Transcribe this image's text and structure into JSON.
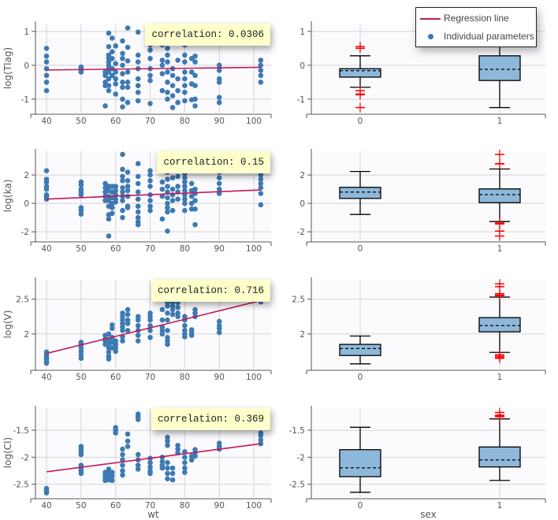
{
  "colors": {
    "points": "#3d7ab3",
    "regression": "#c2185b",
    "box_fill": "#8db8d9",
    "outlier": "#ff0000",
    "plot_bg": "#fbfbfe",
    "grid": "#d4d4d8"
  },
  "legend": {
    "regression_label": "Regression line",
    "points_label": "Individual parameters"
  },
  "chart_data": {
    "type": "scatter+box",
    "xlabel_scatter": "wt",
    "xlabel_box": "sex",
    "xlim_scatter": [
      36.8,
      105
    ],
    "x_ticks_scatter": [
      40,
      50,
      60,
      70,
      80,
      90,
      100
    ],
    "box_categories": [
      "0",
      "1"
    ],
    "grid": true,
    "legend_placement": "top-right",
    "correlation_label": "correlation:",
    "panels": [
      {
        "ylabel": "log(Tlag)",
        "ylim": [
          -1.4,
          1.23
        ],
        "y_ticks": [
          {
            "v": 1,
            "t": "1"
          },
          {
            "v": 0,
            "t": "0"
          },
          {
            "v": -1,
            "t": "-1"
          }
        ],
        "correlation": "0.0306",
        "regression": [
          [
            40,
            -0.14
          ],
          [
            102,
            -0.06
          ]
        ],
        "groups": [
          {
            "wt": 40,
            "y": [
              0.5,
              0.27,
              0.1,
              -0.1,
              -0.3,
              -0.5,
              -0.75
            ]
          },
          {
            "wt": 50,
            "y": [
              -0.05,
              -0.1,
              -0.15,
              -0.2
            ]
          },
          {
            "wt": 57,
            "y": [
              -0.2,
              -0.3,
              -0.5,
              -0.6,
              -1.2
            ]
          },
          {
            "wt": 58,
            "y": [
              0.95,
              0.55,
              0.3,
              0.2,
              0.1,
              0,
              -0.1,
              -0.2,
              -0.4,
              -0.6,
              -0.75
            ]
          },
          {
            "wt": 59,
            "y": [
              0.8,
              0.4,
              0.2,
              -0.1,
              -0.3
            ]
          },
          {
            "wt": 60,
            "y": [
              0.57,
              0.05,
              -0.2,
              -0.4,
              -0.55,
              -0.85
            ]
          },
          {
            "wt": 62,
            "y": [
              0.72,
              0.35,
              0.2,
              0,
              -0.25,
              -0.5,
              -0.65,
              -1.0,
              -1.23
            ]
          },
          {
            "wt": 63.5,
            "y": [
              1.1,
              0.53,
              0.13,
              -0.2,
              -0.5,
              -0.65,
              -1.1
            ]
          },
          {
            "wt": 66.5,
            "y": [
              0.98,
              0.3,
              0.1,
              -0.1,
              -0.4,
              -0.6,
              -0.8,
              -1.05
            ]
          },
          {
            "wt": 70,
            "y": [
              0.98,
              0.6,
              0.45,
              0.2,
              -0.1,
              -0.3,
              -0.45,
              -1.13
            ]
          },
          {
            "wt": 73.5,
            "y": [
              0.6,
              0.15,
              0,
              -0.25,
              -0.75
            ]
          },
          {
            "wt": 75,
            "y": [
              0.5,
              0.3,
              0.1,
              -0.2,
              -0.5,
              -0.8,
              -1.0
            ]
          },
          {
            "wt": 76.5,
            "y": [
              -0.1,
              -0.3,
              -0.6,
              -0.9,
              -1.25
            ]
          },
          {
            "wt": 78,
            "y": [
              0.15,
              -0.4,
              -0.75,
              -1.1
            ]
          },
          {
            "wt": 80,
            "y": [
              0.9,
              0.6,
              0.3,
              0.1,
              -0.2,
              -0.4,
              -0.6,
              -0.8,
              -1.05
            ]
          },
          {
            "wt": 82,
            "y": [
              0.2,
              -0.2,
              -0.55,
              -1.02
            ]
          },
          {
            "wt": 83,
            "y": [
              0.27,
              0.1,
              -0.3,
              -0.6,
              -1.0,
              -1.2
            ]
          },
          {
            "wt": 90,
            "y": [
              0,
              -0.15,
              -0.4,
              -0.5,
              -0.95,
              -1.1
            ]
          },
          {
            "wt": 102,
            "y": [
              0.15,
              0,
              -0.15,
              -0.3,
              -0.5
            ]
          }
        ],
        "boxes": [
          {
            "category": "0",
            "lower_whisker": -0.65,
            "q1": -0.35,
            "median": -0.16,
            "q3": -0.1,
            "upper_whisker": 0.28,
            "outliers": [
              0.55,
              0.5,
              -0.75,
              -0.85,
              -0.87,
              -1.25
            ]
          },
          {
            "category": "1",
            "lower_whisker": -1.25,
            "q1": -0.45,
            "median": -0.12,
            "q3": 0.28,
            "upper_whisker": 1.0,
            "outliers": []
          }
        ]
      },
      {
        "ylabel": "log(ka)",
        "ylim": [
          -2.6,
          3.67
        ],
        "y_ticks": [
          {
            "v": 2,
            "t": "2"
          },
          {
            "v": 0,
            "t": "0"
          },
          {
            "v": -2,
            "t": "-2"
          }
        ],
        "correlation": "0.15",
        "regression": [
          [
            40,
            0.3
          ],
          [
            102,
            0.95
          ]
        ],
        "groups": [
          {
            "wt": 40,
            "y": [
              2.3,
              1.7,
              1.5,
              1.2,
              1.0,
              0.6,
              0.5,
              0.3
            ]
          },
          {
            "wt": 50,
            "y": [
              1.5,
              1.3,
              1.0,
              0.8,
              0.6,
              -0.3,
              -0.5,
              -0.75
            ]
          },
          {
            "wt": 57,
            "y": [
              1.4,
              1.1,
              0.8,
              0.5,
              0.2
            ]
          },
          {
            "wt": 58,
            "y": [
              1.2,
              0.9,
              0.5,
              0.2,
              -0.2,
              -0.8,
              -1.1,
              -2.3
            ]
          },
          {
            "wt": 59,
            "y": [
              1.2,
              0.8,
              0.4,
              0,
              -0.3,
              -0.7
            ]
          },
          {
            "wt": 60,
            "y": [
              1.2,
              0.9,
              0.6,
              0.3,
              0.1
            ]
          },
          {
            "wt": 62,
            "y": [
              3.45,
              2.4,
              1.9,
              1.6,
              1.1,
              0.8,
              0.5,
              0.2,
              -0.5,
              -1.0
            ]
          },
          {
            "wt": 63.5,
            "y": [
              2.2,
              1.6,
              1.2,
              0.9,
              0.5,
              -0.2,
              -0.3
            ]
          },
          {
            "wt": 66.5,
            "y": [
              2.8,
              1.9,
              1.4,
              0.8,
              0.3,
              -0.2,
              -0.6,
              -1.0,
              -1.3,
              -1.5
            ]
          },
          {
            "wt": 70,
            "y": [
              2.3,
              2.0,
              1.6,
              1.2,
              0.6,
              0.2,
              -0.2,
              -0.5
            ]
          },
          {
            "wt": 73.5,
            "y": [
              2.4,
              1.5,
              1.0,
              0.5,
              -1.1
            ]
          },
          {
            "wt": 75,
            "y": [
              2.2,
              1.7,
              1.2,
              0.8,
              0.4,
              0,
              -0.3,
              -0.6,
              -1.95
            ]
          },
          {
            "wt": 76.5,
            "y": [
              1.8,
              1.0,
              0.6,
              0.2,
              -0.5
            ]
          },
          {
            "wt": 78,
            "y": [
              1.9,
              1.2,
              0.8,
              0.3
            ]
          },
          {
            "wt": 80,
            "y": [
              2.1,
              1.8,
              1.5,
              1.2,
              0.9,
              0.6,
              0.3,
              0,
              -0.5
            ]
          },
          {
            "wt": 82,
            "y": [
              1.4,
              0.9,
              0.5,
              0,
              -0.4
            ]
          },
          {
            "wt": 83,
            "y": [
              1.0,
              0.7,
              0.2,
              -0.4,
              -1.5
            ]
          },
          {
            "wt": 90,
            "y": [
              2.2,
              1.8,
              1.4,
              1.0,
              0.7
            ]
          },
          {
            "wt": 102,
            "y": [
              2.0,
              1.7,
              1.4,
              1.1,
              0.7,
              -0.1
            ]
          }
        ],
        "boxes": [
          {
            "category": "0",
            "lower_whisker": -0.78,
            "q1": 0.35,
            "median": 0.8,
            "q3": 1.13,
            "upper_whisker": 2.25,
            "outliers": []
          },
          {
            "category": "1",
            "lower_whisker": -1.28,
            "q1": 0.05,
            "median": 0.62,
            "q3": 1.02,
            "upper_whisker": 2.42,
            "outliers": [
              3.45,
              2.8,
              2.78,
              -1.38,
              -1.45,
              -1.95,
              -2.3
            ]
          }
        ]
      },
      {
        "ylabel": "log(V)",
        "ylim": [
          1.5,
          2.78
        ],
        "y_ticks": [
          {
            "v": 2.5,
            "t": "2.5"
          },
          {
            "v": 2,
            "t": "2"
          }
        ],
        "correlation": "0.716",
        "regression": [
          [
            40,
            1.72
          ],
          [
            102,
            2.48
          ]
        ],
        "groups": [
          {
            "wt": 40,
            "y": [
              1.74,
              1.7,
              1.67,
              1.64,
              1.6,
              1.58
            ]
          },
          {
            "wt": 50,
            "y": [
              1.88,
              1.85,
              1.8,
              1.75,
              1.7,
              1.65
            ]
          },
          {
            "wt": 57,
            "y": [
              1.98,
              1.93,
              1.9,
              1.85
            ]
          },
          {
            "wt": 58,
            "y": [
              2.0,
              1.92,
              1.85,
              1.8,
              1.74,
              1.68,
              1.64
            ]
          },
          {
            "wt": 59,
            "y": [
              2.13,
              2.08,
              1.95,
              1.88,
              1.8
            ]
          },
          {
            "wt": 60,
            "y": [
              1.9,
              1.85,
              1.8,
              1.75
            ]
          },
          {
            "wt": 62,
            "y": [
              2.3,
              2.25,
              2.2,
              2.15,
              2.1,
              2.05,
              1.96,
              1.9
            ]
          },
          {
            "wt": 63.5,
            "y": [
              2.35,
              2.28,
              2.2,
              2.15,
              2.05
            ]
          },
          {
            "wt": 66.5,
            "y": [
              2.25,
              2.2,
              2.12,
              2.05,
              1.98,
              1.9
            ]
          },
          {
            "wt": 70,
            "y": [
              2.3,
              2.25,
              2.2,
              2.12,
              2.05,
              1.95
            ]
          },
          {
            "wt": 73.5,
            "y": [
              2.35,
              2.2,
              2.1,
              2.05,
              2.0
            ]
          },
          {
            "wt": 75,
            "y": [
              2.5,
              2.45,
              2.4,
              2.3,
              2.2,
              2.05,
              1.95,
              1.9,
              1.85
            ]
          },
          {
            "wt": 76.5,
            "y": [
              2.45,
              2.4,
              2.35,
              2.28
            ]
          },
          {
            "wt": 78,
            "y": [
              2.45,
              2.38,
              2.3,
              2.25
            ]
          },
          {
            "wt": 80,
            "y": [
              2.25,
              2.2,
              2.12,
              2.05,
              2.0,
              1.96
            ]
          },
          {
            "wt": 82,
            "y": [
              2.06,
              2.02,
              1.98
            ]
          },
          {
            "wt": 83,
            "y": [
              2.35,
              2.3,
              2.25
            ]
          },
          {
            "wt": 90,
            "y": [
              2.18,
              2.12,
              2.08,
              2.02
            ]
          },
          {
            "wt": 102,
            "y": [
              2.5,
              2.46
            ]
          }
        ],
        "boxes": [
          {
            "category": "0",
            "lower_whisker": 1.57,
            "q1": 1.69,
            "median": 1.79,
            "q3": 1.85,
            "upper_whisker": 1.97,
            "outliers": []
          },
          {
            "category": "1",
            "lower_whisker": 1.735,
            "q1": 2.03,
            "median": 2.12,
            "q3": 2.235,
            "upper_whisker": 2.53,
            "outliers": [
              2.72,
              2.68,
              2.58,
              2.56,
              2.55,
              1.7,
              1.68,
              1.66,
              1.65
            ]
          }
        ]
      },
      {
        "ylabel": "log(Cl)",
        "ylim": [
          -2.74,
          -1.09
        ],
        "y_ticks": [
          {
            "v": -1.5,
            "t": "-1.5"
          },
          {
            "v": -2,
            "t": "-2"
          },
          {
            "v": -2.5,
            "t": "-2.5"
          }
        ],
        "correlation": "0.369",
        "regression": [
          [
            40,
            -2.27
          ],
          [
            102,
            -1.75
          ]
        ],
        "groups": [
          {
            "wt": 40,
            "y": [
              -2.58,
              -2.62,
              -2.66
            ]
          },
          {
            "wt": 50,
            "y": [
              -1.8,
              -1.85,
              -1.9,
              -1.95,
              -2.15,
              -2.2,
              -2.25,
              -2.3
            ]
          },
          {
            "wt": 57,
            "y": [
              -2.28,
              -2.33,
              -2.38,
              -2.43
            ]
          },
          {
            "wt": 58,
            "y": [
              -2.22,
              -2.3,
              -2.36,
              -2.42
            ]
          },
          {
            "wt": 59,
            "y": [
              -2.28,
              -2.35,
              -2.43
            ]
          },
          {
            "wt": 60,
            "y": [
              -1.45,
              -1.5,
              -1.55
            ]
          },
          {
            "wt": 62,
            "y": [
              -1.85,
              -1.95,
              -2.05,
              -2.15,
              -2.25,
              -2.33
            ]
          },
          {
            "wt": 63.5,
            "y": [
              -1.57,
              -1.7,
              -1.8
            ]
          },
          {
            "wt": 66.5,
            "y": [
              -1.2,
              -1.25,
              -1.3,
              -1.95,
              -2.05,
              -2.15,
              -2.22
            ]
          },
          {
            "wt": 70,
            "y": [
              -2.02,
              -2.1,
              -2.18,
              -2.25,
              -2.3
            ]
          },
          {
            "wt": 73.5,
            "y": [
              -2.0,
              -2.08,
              -2.15,
              -2.2
            ]
          },
          {
            "wt": 75,
            "y": [
              -1.63,
              -1.7,
              -1.78,
              -2.1,
              -2.2,
              -2.3,
              -2.4
            ]
          },
          {
            "wt": 76.5,
            "y": [
              -2.2,
              -2.3,
              -2.42
            ]
          },
          {
            "wt": 78,
            "y": [
              -1.78,
              -1.85,
              -1.92
            ]
          },
          {
            "wt": 80,
            "y": [
              -1.9,
              -2.0,
              -2.1,
              -2.2,
              -2.28
            ]
          },
          {
            "wt": 82,
            "y": [
              -1.98,
              -2.05
            ]
          },
          {
            "wt": 83,
            "y": [
              -1.86,
              -1.92,
              -1.98
            ]
          },
          {
            "wt": 90,
            "y": [
              -1.74,
              -1.8,
              -1.85
            ]
          },
          {
            "wt": 102,
            "y": [
              -1.55,
              -1.6,
              -1.68,
              -1.75
            ]
          }
        ],
        "boxes": [
          {
            "category": "0",
            "lower_whisker": -2.65,
            "q1": -2.36,
            "median": -2.196,
            "q3": -1.86,
            "upper_whisker": -1.445,
            "outliers": []
          },
          {
            "category": "1",
            "lower_whisker": -2.43,
            "q1": -2.18,
            "median": -2.05,
            "q3": -1.81,
            "upper_whisker": -1.29,
            "outliers": [
              -1.17,
              -1.22,
              -1.24,
              -1.25
            ]
          }
        ]
      }
    ]
  }
}
